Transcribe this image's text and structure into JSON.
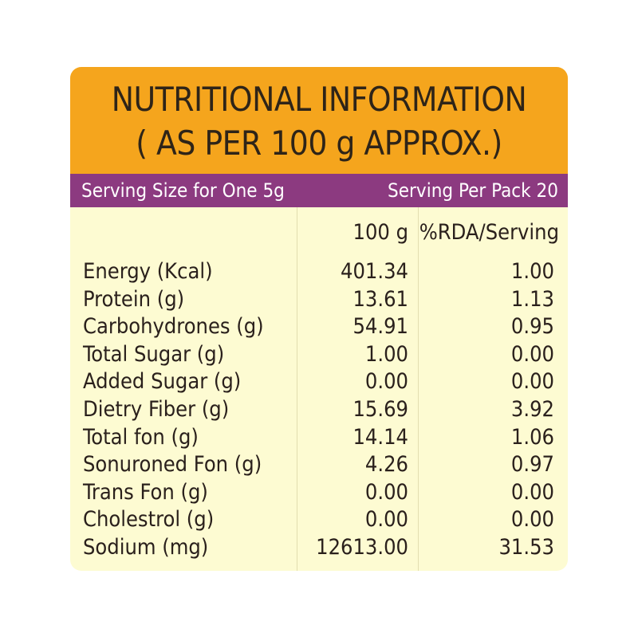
{
  "header": {
    "title_lines": [
      "NUTRITIONAL INFORMATION",
      "( AS PER 100 g APPROX.)"
    ]
  },
  "serving": {
    "size": "Serving Size for One 5g",
    "per_pack": "Serving Per Pack 20"
  },
  "table": {
    "columns": [
      "100 g",
      "%RDA/Serving"
    ],
    "rows": [
      [
        "Energy (Kcal)",
        "401.34",
        "1.00"
      ],
      [
        "Protein (g)",
        "13.61",
        "1.13"
      ],
      [
        "Carbohydrones (g)",
        "54.91",
        "0.95"
      ],
      [
        "Total Sugar (g)",
        "1.00",
        "0.00"
      ],
      [
        "Added Sugar (g)",
        "0.00",
        "0.00"
      ],
      [
        "Dietry Fiber (g)",
        "15.69",
        "3.92"
      ],
      [
        "Total fon (g)",
        "14.14",
        "1.06"
      ],
      [
        "Sonuroned Fon (g)",
        "4.26",
        "0.97"
      ],
      [
        "Trans Fon (g)",
        "0.00",
        "0.00"
      ],
      [
        "Cholestrol (g)",
        "0.00",
        "0.00"
      ],
      [
        "Sodium (mg)",
        "12613.00",
        "31.53"
      ]
    ]
  }
}
